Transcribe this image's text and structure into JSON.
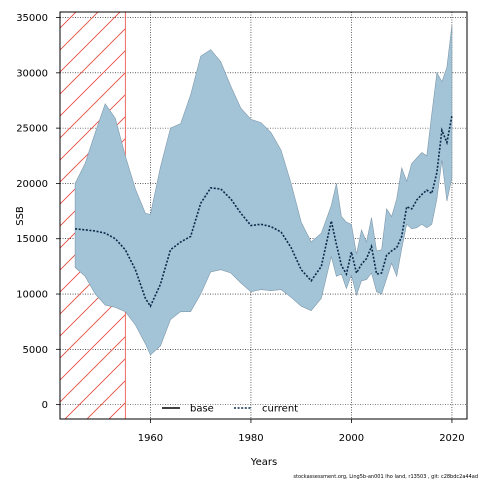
{
  "chart_data": {
    "type": "line",
    "title": "",
    "xlabel": "Years",
    "ylabel": "SSB",
    "xlim": [
      1942,
      2023
    ],
    "ylim": [
      -1300,
      35500
    ],
    "x_ticks": [
      1960,
      1980,
      2000,
      2020
    ],
    "y_ticks": [
      0,
      5000,
      10000,
      15000,
      20000,
      25000,
      30000,
      35000
    ],
    "grid": true,
    "legend_position": "bottom-center",
    "shaded_region": {
      "x_start": 1942,
      "x_end": 1955,
      "style": "red-diagonal-hatch"
    },
    "series": [
      {
        "name": "base",
        "line_style": "solid",
        "color": "#000000",
        "x": [],
        "y": []
      },
      {
        "name": "current",
        "line_style": "dotted",
        "color": "#0a2a4a",
        "x": [
          1945,
          1947,
          1949,
          1951,
          1953,
          1955,
          1957,
          1959,
          1960,
          1962,
          1964,
          1966,
          1968,
          1970,
          1972,
          1974,
          1976,
          1978,
          1980,
          1982,
          1984,
          1986,
          1988,
          1990,
          1992,
          1994,
          1996,
          1997,
          1998,
          1999,
          2000,
          2001,
          2002,
          2003,
          2004,
          2005,
          2006,
          2007,
          2008,
          2009,
          2010,
          2011,
          2012,
          2013,
          2014,
          2015,
          2016,
          2017,
          2018,
          2019,
          2020
        ],
        "y": [
          15900,
          15800,
          15700,
          15500,
          15000,
          14000,
          12200,
          9600,
          8900,
          10900,
          14000,
          14700,
          15200,
          18200,
          19600,
          19500,
          18600,
          17300,
          16200,
          16300,
          16100,
          15600,
          14200,
          12200,
          11200,
          12500,
          16600,
          14500,
          12600,
          11800,
          13800,
          11900,
          12700,
          13200,
          14300,
          11800,
          11900,
          13500,
          13900,
          14200,
          15200,
          17900,
          17700,
          18500,
          19000,
          19400,
          19100,
          21000,
          24800,
          23700,
          26100
        ]
      }
    ],
    "ci_band": {
      "x": [
        1945,
        1947,
        1949,
        1951,
        1953,
        1955,
        1957,
        1959,
        1960,
        1962,
        1964,
        1966,
        1968,
        1970,
        1972,
        1974,
        1976,
        1978,
        1980,
        1982,
        1984,
        1986,
        1988,
        1990,
        1992,
        1994,
        1996,
        1997,
        1998,
        1999,
        2000,
        2001,
        2002,
        2003,
        2004,
        2005,
        2006,
        2007,
        2008,
        2009,
        2010,
        2011,
        2012,
        2013,
        2014,
        2015,
        2016,
        2017,
        2018,
        2019,
        2020
      ],
      "upper": [
        20000,
        21800,
        24600,
        27200,
        25900,
        22500,
        19500,
        17300,
        17200,
        21500,
        25000,
        25400,
        28000,
        31500,
        32100,
        31000,
        28800,
        26800,
        25800,
        25500,
        24600,
        23000,
        20000,
        16500,
        14700,
        15500,
        18000,
        20000,
        17000,
        16500,
        16300,
        13600,
        15800,
        14700,
        16900,
        13900,
        14000,
        17700,
        17000,
        18600,
        21400,
        20200,
        21800,
        22300,
        22800,
        22500,
        26300,
        30000,
        29200,
        30500,
        34300
      ],
      "lower": [
        12400,
        11600,
        10000,
        9000,
        8800,
        8400,
        7200,
        5500,
        4500,
        5300,
        7700,
        8400,
        8400,
        10000,
        12000,
        12200,
        11900,
        11000,
        10200,
        10400,
        10300,
        10400,
        9700,
        8900,
        8500,
        9600,
        13400,
        11600,
        11800,
        10500,
        11700,
        9900,
        11200,
        11300,
        11900,
        10200,
        10000,
        11400,
        12800,
        11600,
        14100,
        16300,
        15900,
        16000,
        16300,
        16000,
        16300,
        18600,
        22100,
        18400,
        20500
      ]
    },
    "footnote": "stockassessment.org, Ling5b-an001 lho land, r13503 , git: c28bdc2a44ad"
  }
}
